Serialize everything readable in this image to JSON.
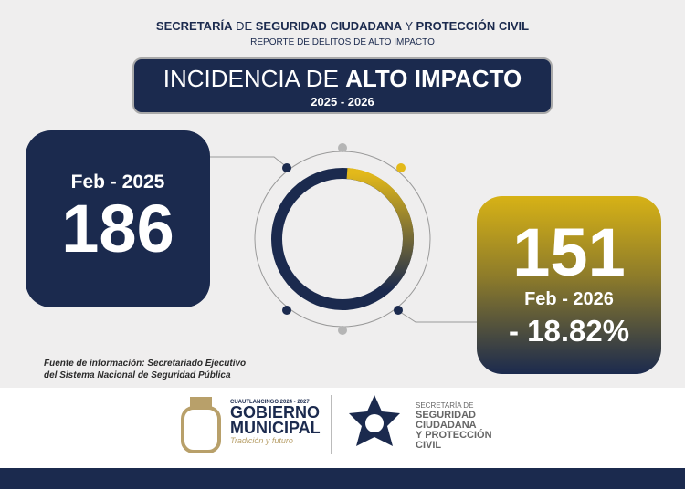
{
  "header": {
    "title": [
      {
        "text": "SECRETARÍA",
        "bold": true
      },
      {
        "text": " DE ",
        "bold": false
      },
      {
        "text": "SEGURIDAD CIUDADANA",
        "bold": true
      },
      {
        "text": " Y ",
        "bold": false
      },
      {
        "text": "PROTECCIÓN CIVIL",
        "bold": true
      }
    ],
    "subtitle": "REPORTE DE DELITOS DE ALTO IMPACTO"
  },
  "banner": {
    "title_light": "INCIDENCIA DE ",
    "title_bold": "ALTO IMPACTO",
    "period": "2025 - 2026"
  },
  "previous": {
    "label": "Feb - 2025",
    "value": "186"
  },
  "current": {
    "value": "151",
    "label": "Feb - 2026",
    "change": "- 18.82%"
  },
  "source": [
    "Fuente de información: Secretariado Ejecutivo",
    "del Sistema Nacional de Seguridad Pública"
  ],
  "footer": {
    "municipality": {
      "small": "CUAUTLANCINGO 2024 - 2027",
      "line1": "GOBIERNO",
      "line2": "MUNICIPAL",
      "slogan": "Tradición y futuro"
    },
    "agency": [
      "SECRETARÍA DE",
      "SEGURIDAD",
      "CIUDADANA",
      "Y PROTECCIÓN",
      "CIVIL"
    ]
  }
}
